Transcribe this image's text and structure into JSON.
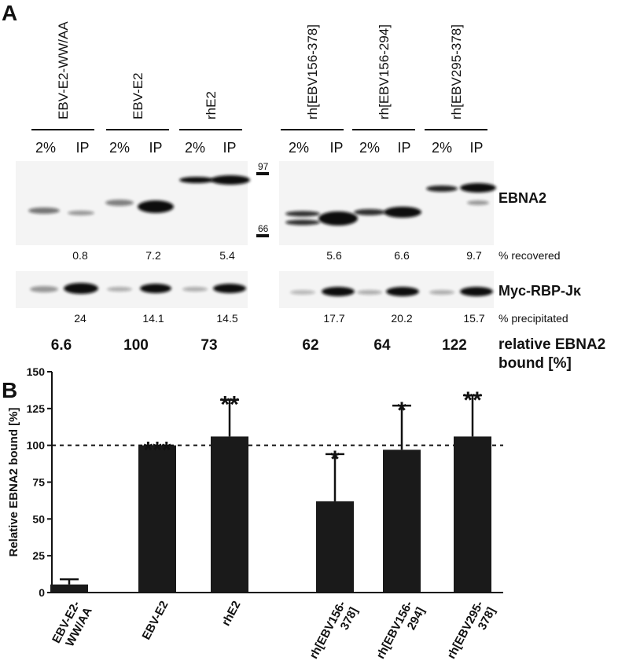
{
  "panel_a": {
    "label": "A",
    "lanes": [
      {
        "name": "EBV-E2-WW/AA",
        "sublanes": [
          "2%",
          "IP"
        ]
      },
      {
        "name": "EBV-E2",
        "sublanes": [
          "2%",
          "IP"
        ]
      },
      {
        "name": "rhE2",
        "sublanes": [
          "2%",
          "IP"
        ]
      },
      {
        "name": "rh[EBV156-378]",
        "sublanes": [
          "2%",
          "IP"
        ]
      },
      {
        "name": "rh[EBV156-294]",
        "sublanes": [
          "2%",
          "IP"
        ]
      },
      {
        "name": "rh[EBV295-378]",
        "sublanes": [
          "2%",
          "IP"
        ]
      }
    ],
    "markers": [
      97,
      66
    ],
    "blot_labels": [
      "EBNA2",
      "Myc-RBP-Jκ"
    ],
    "recovered": {
      "label": "% recovered",
      "values": [
        0.8,
        7.2,
        5.4,
        5.6,
        6.6,
        9.7
      ]
    },
    "precipitated": {
      "label": "% precipitated",
      "values": [
        24,
        14.1,
        14.5,
        17.7,
        20.2,
        15.7
      ]
    },
    "relative": {
      "label": [
        "relative EBNA2",
        "bound [%]"
      ],
      "values": [
        6.6,
        100,
        73,
        62,
        64,
        122
      ]
    }
  },
  "chart_data": {
    "type": "bar",
    "panel_label": "B",
    "y_label": "Relative EBNA2 bound [%]",
    "categories": [
      [
        "EBV-E2-",
        "WW/AA"
      ],
      [
        "EBV-E2"
      ],
      [
        "rhE2"
      ],
      [
        "rh[EBV156-",
        "378]"
      ],
      [
        "rh[EBV156-",
        "294]"
      ],
      [
        "rh[EBV295-",
        "378]"
      ]
    ],
    "values": [
      5.5,
      100,
      106,
      62,
      97,
      106
    ],
    "errors": [
      3.5,
      null,
      25,
      32,
      30,
      28
    ],
    "significance": [
      null,
      "***",
      "**",
      "*",
      "*",
      "**"
    ],
    "color": "#1a1a1a",
    "reference_line": 100,
    "ylim": [
      0,
      150
    ],
    "yticks": [
      0,
      25,
      50,
      75,
      100,
      125,
      150
    ]
  }
}
